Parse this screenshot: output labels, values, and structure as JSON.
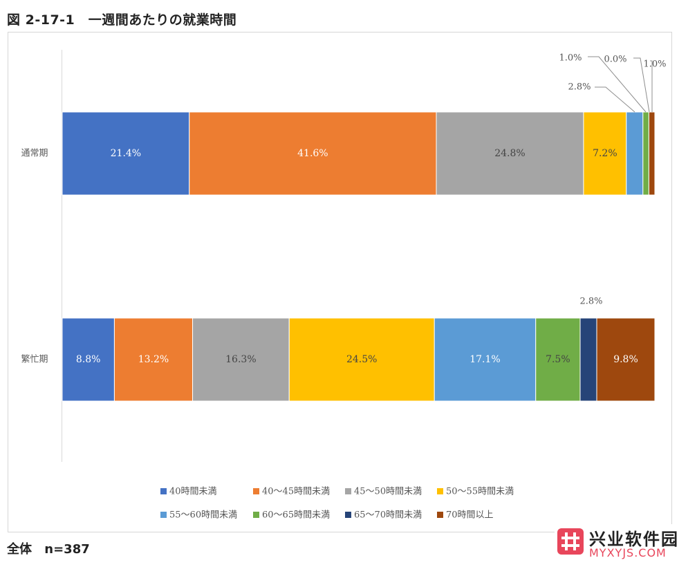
{
  "figure_title": "図 2-17-1　一週間あたりの就業時間",
  "footnote": {
    "label": "全体",
    "sample": "n=387"
  },
  "watermark": {
    "name": "兴业软件园",
    "url": "MYXYJS.COM"
  },
  "colors": {
    "s1": "#4472c4",
    "s2": "#ed7d31",
    "s3": "#a5a5a5",
    "s4": "#ffc000",
    "s5": "#5b9bd5",
    "s6": "#70ad47",
    "s7": "#264478",
    "s8": "#9e480e",
    "axis": "#d9d9d9",
    "logo": "#e8465b"
  },
  "chart_data": {
    "type": "bar",
    "orientation": "horizontal",
    "stacked": "100%",
    "categories": [
      "通常期",
      "繁忙期"
    ],
    "series": [
      {
        "name": "40時間未満",
        "values": [
          21.4,
          8.8
        ]
      },
      {
        "name": "40～45時間未満",
        "values": [
          41.6,
          13.2
        ]
      },
      {
        "name": "45～50時間未満",
        "values": [
          24.8,
          16.3
        ]
      },
      {
        "name": "50～55時間未満",
        "values": [
          7.2,
          24.5
        ]
      },
      {
        "name": "55～60時間未満",
        "values": [
          2.8,
          17.1
        ]
      },
      {
        "name": "60～65時間未満",
        "values": [
          1.0,
          7.5
        ]
      },
      {
        "name": "65～70時間未満",
        "values": [
          0.0,
          2.8
        ]
      },
      {
        "name": "70時間以上",
        "values": [
          1.0,
          9.8
        ]
      }
    ],
    "data_labels": [
      [
        "21.4%",
        "41.6%",
        "24.8%",
        "7.2%",
        "2.8%",
        "1.0%",
        "0.0%",
        "1.0%"
      ],
      [
        "8.8%",
        "13.2%",
        "16.3%",
        "24.5%",
        "17.1%",
        "7.5%",
        "2.8%",
        "9.8%"
      ]
    ],
    "legend_position": "bottom",
    "gridlines": false
  }
}
